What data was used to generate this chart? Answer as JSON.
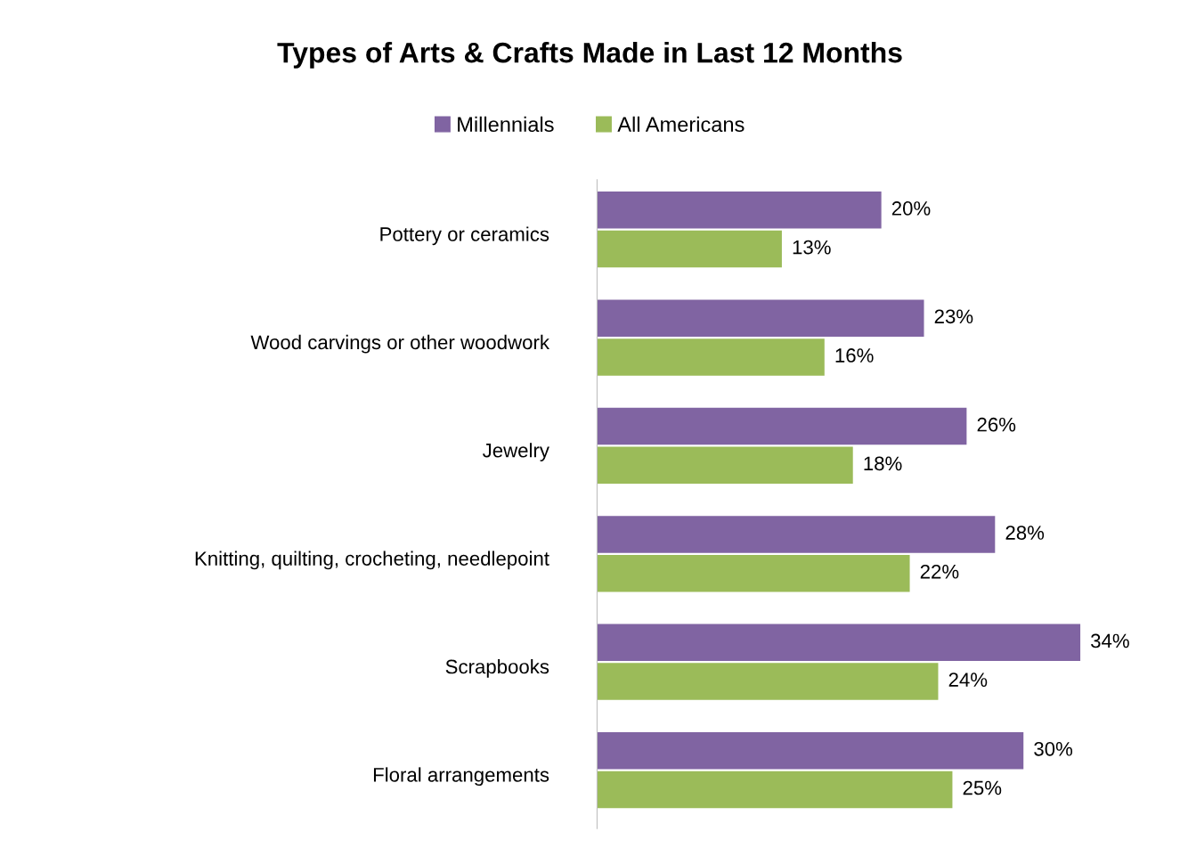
{
  "chart_data": {
    "type": "bar",
    "orientation": "horizontal",
    "title": "Types of Arts & Crafts Made in Last 12 Months",
    "categories": [
      "Pottery or ceramics",
      "Wood carvings or other woodwork",
      "Jewelry",
      "Knitting, quilting, crocheting, needlepoint",
      "Scrapbooks",
      "Floral arrangements"
    ],
    "series": [
      {
        "name": "Millennials",
        "color": "#8064a2",
        "values": [
          20,
          23,
          26,
          28,
          34,
          30
        ],
        "value_labels": [
          "20%",
          "23%",
          "26%",
          "28%",
          "34%",
          "30%"
        ]
      },
      {
        "name": "All Americans",
        "color": "#9bbb59",
        "values": [
          13,
          16,
          18,
          22,
          24,
          25
        ],
        "value_labels": [
          "13%",
          "16%",
          "18%",
          "22%",
          "24%",
          "25%"
        ]
      }
    ],
    "tick_labels": "y",
    "grid": false,
    "legend": "top"
  }
}
